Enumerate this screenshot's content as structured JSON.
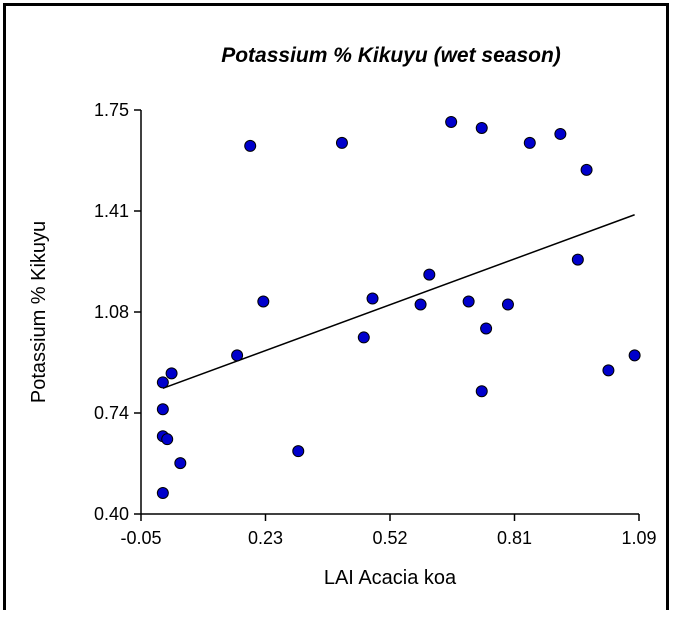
{
  "chart_data": {
    "type": "scatter",
    "title": "Potassium % Kikuyu (wet season)",
    "xlabel": "LAI Acacia koa",
    "ylabel": "Potassium % Kikuyu",
    "xlim": [
      -0.05,
      1.09
    ],
    "ylim": [
      0.4,
      1.75
    ],
    "x_ticks": [
      "-0.05",
      "0.23",
      "0.52",
      "0.81",
      "1.09"
    ],
    "y_ticks": [
      "0.40",
      "0.74",
      "1.08",
      "1.41",
      "1.75"
    ],
    "x_tick_values": [
      -0.05,
      0.235,
      0.52,
      0.805,
      1.09
    ],
    "y_tick_values": [
      0.4,
      0.7375,
      1.075,
      1.4125,
      1.75
    ],
    "points": [
      {
        "x": 0.0,
        "y": 0.47
      },
      {
        "x": 0.0,
        "y": 0.66
      },
      {
        "x": 0.0,
        "y": 0.75
      },
      {
        "x": 0.0,
        "y": 0.84
      },
      {
        "x": 0.01,
        "y": 0.65
      },
      {
        "x": 0.02,
        "y": 0.87
      },
      {
        "x": 0.04,
        "y": 0.57
      },
      {
        "x": 0.17,
        "y": 0.93
      },
      {
        "x": 0.2,
        "y": 1.63
      },
      {
        "x": 0.23,
        "y": 1.11
      },
      {
        "x": 0.31,
        "y": 0.61
      },
      {
        "x": 0.41,
        "y": 1.64
      },
      {
        "x": 0.46,
        "y": 0.99
      },
      {
        "x": 0.48,
        "y": 1.12
      },
      {
        "x": 0.59,
        "y": 1.1
      },
      {
        "x": 0.61,
        "y": 1.2
      },
      {
        "x": 0.66,
        "y": 1.71
      },
      {
        "x": 0.7,
        "y": 1.11
      },
      {
        "x": 0.73,
        "y": 1.69
      },
      {
        "x": 0.73,
        "y": 0.81
      },
      {
        "x": 0.74,
        "y": 1.02
      },
      {
        "x": 0.79,
        "y": 1.1
      },
      {
        "x": 0.84,
        "y": 1.64
      },
      {
        "x": 0.91,
        "y": 1.67
      },
      {
        "x": 0.95,
        "y": 1.25
      },
      {
        "x": 0.97,
        "y": 1.55
      },
      {
        "x": 1.02,
        "y": 0.88
      },
      {
        "x": 1.08,
        "y": 0.93
      }
    ],
    "trendline": {
      "x": [
        0.0,
        1.08
      ],
      "y": [
        0.82,
        1.4
      ]
    },
    "marker_color": "#0000cc",
    "marker_edge_color": "#000000",
    "line_color": "#000000",
    "grid": false,
    "legend": "none"
  }
}
